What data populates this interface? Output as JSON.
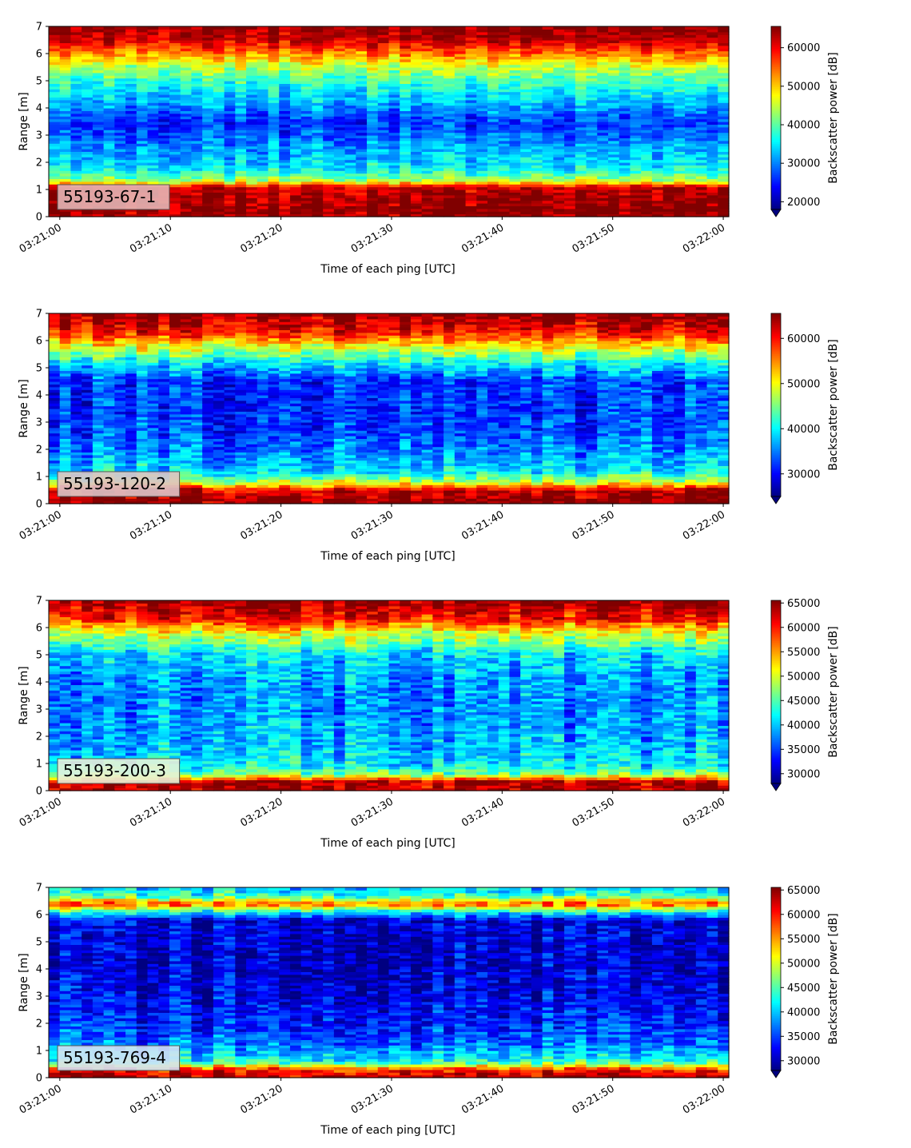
{
  "chart_data": [
    {
      "type": "heatmap",
      "label": "55193-67-1",
      "label_box_color": "#e3b5b5",
      "xlabel": "Time of each ping [UTC]",
      "ylabel": "Range [m]",
      "xticks": [
        "03:21:00",
        "03:21:10",
        "03:21:20",
        "03:21:30",
        "03:21:40",
        "03:21:50",
        "03:22:00"
      ],
      "x_range_seconds": [
        -1,
        60.5
      ],
      "ylim": [
        0,
        7
      ],
      "yticks": [
        0,
        1,
        2,
        3,
        4,
        5,
        6,
        7
      ],
      "colorbar": {
        "label": "Backscatter power [dB]",
        "ticks": [
          20000,
          30000,
          40000,
          50000,
          60000
        ],
        "range": [
          18000,
          65535
        ],
        "extend": "min"
      },
      "profile": [
        [
          0,
          63000
        ],
        [
          0.2,
          65000
        ],
        [
          1.1,
          62000
        ],
        [
          1.3,
          45000
        ],
        [
          1.7,
          36000
        ],
        [
          2.1,
          33000
        ],
        [
          2.6,
          31000
        ],
        [
          3.0,
          28000
        ],
        [
          3.5,
          26000
        ],
        [
          4.2,
          32000
        ],
        [
          5.0,
          38000
        ],
        [
          5.6,
          46000
        ],
        [
          6.1,
          55000
        ],
        [
          6.5,
          62000
        ],
        [
          7.0,
          65000
        ]
      ]
    },
    {
      "type": "heatmap",
      "label": "55193-120-2",
      "label_box_color": "#dcc4c8",
      "xlabel": "Time of each ping [UTC]",
      "ylabel": "Range [m]",
      "xticks": [
        "03:21:00",
        "03:21:10",
        "03:21:20",
        "03:21:30",
        "03:21:40",
        "03:21:50",
        "03:22:00"
      ],
      "x_range_seconds": [
        -1,
        60.5
      ],
      "ylim": [
        0,
        7
      ],
      "yticks": [
        0,
        1,
        2,
        3,
        4,
        5,
        6,
        7
      ],
      "colorbar": {
        "label": "Backscatter power [dB]",
        "ticks": [
          30000,
          40000,
          50000,
          60000
        ],
        "range": [
          25000,
          65535
        ],
        "extend": "min"
      },
      "profile": [
        [
          0,
          65000
        ],
        [
          0.5,
          63000
        ],
        [
          0.8,
          48000
        ],
        [
          1.2,
          39000
        ],
        [
          1.8,
          36000
        ],
        [
          2.6,
          33000
        ],
        [
          3.5,
          32000
        ],
        [
          4.5,
          32000
        ],
        [
          5.2,
          40000
        ],
        [
          5.8,
          50000
        ],
        [
          6.3,
          60000
        ],
        [
          7.0,
          65000
        ]
      ]
    },
    {
      "type": "heatmap",
      "label": "55193-200-3",
      "label_box_color": "#e8f2d8",
      "xlabel": "Time of each ping [UTC]",
      "ylabel": "Range [m]",
      "xticks": [
        "03:21:00",
        "03:21:10",
        "03:21:20",
        "03:21:30",
        "03:21:40",
        "03:21:50",
        "03:22:00"
      ],
      "x_range_seconds": [
        -1,
        60.5
      ],
      "ylim": [
        0,
        7
      ],
      "yticks": [
        0,
        1,
        2,
        3,
        4,
        5,
        6,
        7
      ],
      "colorbar": {
        "label": "Backscatter power [dB]",
        "ticks": [
          30000,
          35000,
          40000,
          45000,
          50000,
          55000,
          60000,
          65000
        ],
        "range": [
          28000,
          65535
        ],
        "extend": "min"
      },
      "profile": [
        [
          0,
          64000
        ],
        [
          0.35,
          63000
        ],
        [
          0.6,
          47000
        ],
        [
          1.0,
          41000
        ],
        [
          2.0,
          39000
        ],
        [
          3.0,
          38000
        ],
        [
          4.0,
          38000
        ],
        [
          5.0,
          41000
        ],
        [
          5.8,
          50000
        ],
        [
          6.3,
          60000
        ],
        [
          7.0,
          65000
        ]
      ]
    },
    {
      "type": "heatmap",
      "label": "55193-769-4",
      "label_box_color": "#d2e2f4",
      "xlabel": "Time of each ping [UTC]",
      "ylabel": "Range [m]",
      "xticks": [
        "03:21:00",
        "03:21:10",
        "03:21:20",
        "03:21:30",
        "03:21:40",
        "03:21:50",
        "03:22:00"
      ],
      "x_range_seconds": [
        -1,
        60.5
      ],
      "ylim": [
        0,
        7
      ],
      "yticks": [
        0,
        1,
        2,
        3,
        4,
        5,
        6,
        7
      ],
      "colorbar": {
        "label": "Backscatter power [dB]",
        "ticks": [
          30000,
          35000,
          40000,
          45000,
          50000,
          55000,
          60000,
          65000
        ],
        "range": [
          28000,
          65535
        ],
        "extend": "min"
      },
      "profile": [
        [
          0,
          64000
        ],
        [
          0.3,
          60000
        ],
        [
          0.6,
          43000
        ],
        [
          1.2,
          37000
        ],
        [
          2.0,
          34000
        ],
        [
          3.0,
          32000
        ],
        [
          4.5,
          31000
        ],
        [
          5.8,
          31500
        ],
        [
          6.1,
          42000
        ],
        [
          6.4,
          58000
        ],
        [
          6.7,
          44000
        ],
        [
          7.0,
          40000
        ]
      ]
    }
  ]
}
